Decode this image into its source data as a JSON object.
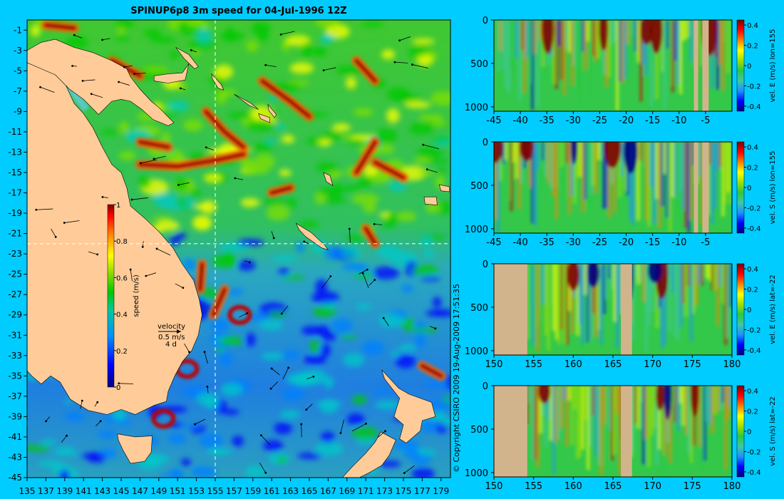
{
  "title": "SPINUP6p8 3m speed for 04-Jul-1996 12Z",
  "copyright": "© Copyright CSIRO 2009   19-Aug-2009 17:51:35",
  "colors": {
    "background": "#00ccff",
    "land": "#ffcc99",
    "section_land": "#d2b48c",
    "colormap": [
      "#000080",
      "#0000ff",
      "#0080ff",
      "#00c8c8",
      "#00c800",
      "#80e000",
      "#ffff00",
      "#ff8000",
      "#ff0000",
      "#800000"
    ]
  },
  "chart_data": [
    {
      "type": "heatmap",
      "name": "map",
      "title": "SPINUP6p8 3m speed for 04-Jul-1996 12Z",
      "x_ticks": [
        "135",
        "137",
        "139",
        "141",
        "143",
        "145",
        "147",
        "149",
        "151",
        "153",
        "155",
        "157",
        "159",
        "161",
        "163",
        "165",
        "167",
        "169",
        "171",
        "173",
        "175",
        "177",
        "179"
      ],
      "y_ticks": [
        "-1",
        "-3",
        "-5",
        "-7",
        "-9",
        "-11",
        "-13",
        "-15",
        "-17",
        "-19",
        "-21",
        "-23",
        "-25",
        "-27",
        "-29",
        "-31",
        "-33",
        "-35",
        "-37",
        "-39",
        "-41",
        "-43",
        "-45"
      ],
      "xlim": [
        135,
        180
      ],
      "ylim": [
        -45,
        0
      ],
      "section_lon": 155,
      "section_lat": -22,
      "colorbar": {
        "label": "speed (m/s)",
        "ticks": [
          "0",
          "0.2",
          "0.4",
          "0.6",
          "0.8",
          "1"
        ],
        "range": [
          0,
          1
        ]
      },
      "velocity_key": {
        "title": "velocity",
        "speed": "0.5 m/s",
        "duration": "4 d"
      }
    },
    {
      "type": "heatmap",
      "name": "section-1",
      "colorbar_label": "vel. E (m/s) lon=155",
      "x_ticks": [
        "-45",
        "-40",
        "-35",
        "-30",
        "-25",
        "-20",
        "-15",
        "-10",
        "-5"
      ],
      "y_ticks": [
        "0",
        "500",
        "1000"
      ],
      "xlim": [
        -45,
        0
      ],
      "ylim": [
        1050,
        0
      ],
      "colorbar_ticks": [
        "0.4",
        "0.2",
        "0",
        "-0.2",
        "-0.4"
      ],
      "clim": [
        -0.45,
        0.45
      ]
    },
    {
      "type": "heatmap",
      "name": "section-2",
      "colorbar_label": "vel. S (m/s) lon=155",
      "x_ticks": [
        "-45",
        "-40",
        "-35",
        "-30",
        "-25",
        "-20",
        "-15",
        "-10",
        "-5"
      ],
      "y_ticks": [
        "0",
        "500",
        "1000"
      ],
      "xlim": [
        -45,
        0
      ],
      "ylim": [
        1050,
        0
      ],
      "colorbar_ticks": [
        "0.4",
        "0.2",
        "0",
        "-0.2",
        "-0.4"
      ],
      "clim": [
        -0.45,
        0.45
      ]
    },
    {
      "type": "heatmap",
      "name": "section-3",
      "colorbar_label": "vel. E (m/s) lat=-22",
      "x_ticks": [
        "150",
        "155",
        "160",
        "165",
        "170",
        "175",
        "180"
      ],
      "y_ticks": [
        "0",
        "500",
        "1000"
      ],
      "xlim": [
        150,
        180
      ],
      "ylim": [
        1050,
        0
      ],
      "colorbar_ticks": [
        "0.4",
        "0.2",
        "0",
        "-0.2",
        "-0.4"
      ],
      "clim": [
        -0.45,
        0.45
      ]
    },
    {
      "type": "heatmap",
      "name": "section-4",
      "colorbar_label": "vel. S (m/s) lat=-22",
      "x_ticks": [
        "150",
        "155",
        "160",
        "165",
        "170",
        "175",
        "180"
      ],
      "y_ticks": [
        "0",
        "500",
        "1000"
      ],
      "xlim": [
        150,
        180
      ],
      "ylim": [
        1050,
        0
      ],
      "colorbar_ticks": [
        "0.4",
        "0.2",
        "0",
        "-0.2",
        "-0.4"
      ],
      "clim": [
        -0.45,
        0.45
      ]
    }
  ]
}
